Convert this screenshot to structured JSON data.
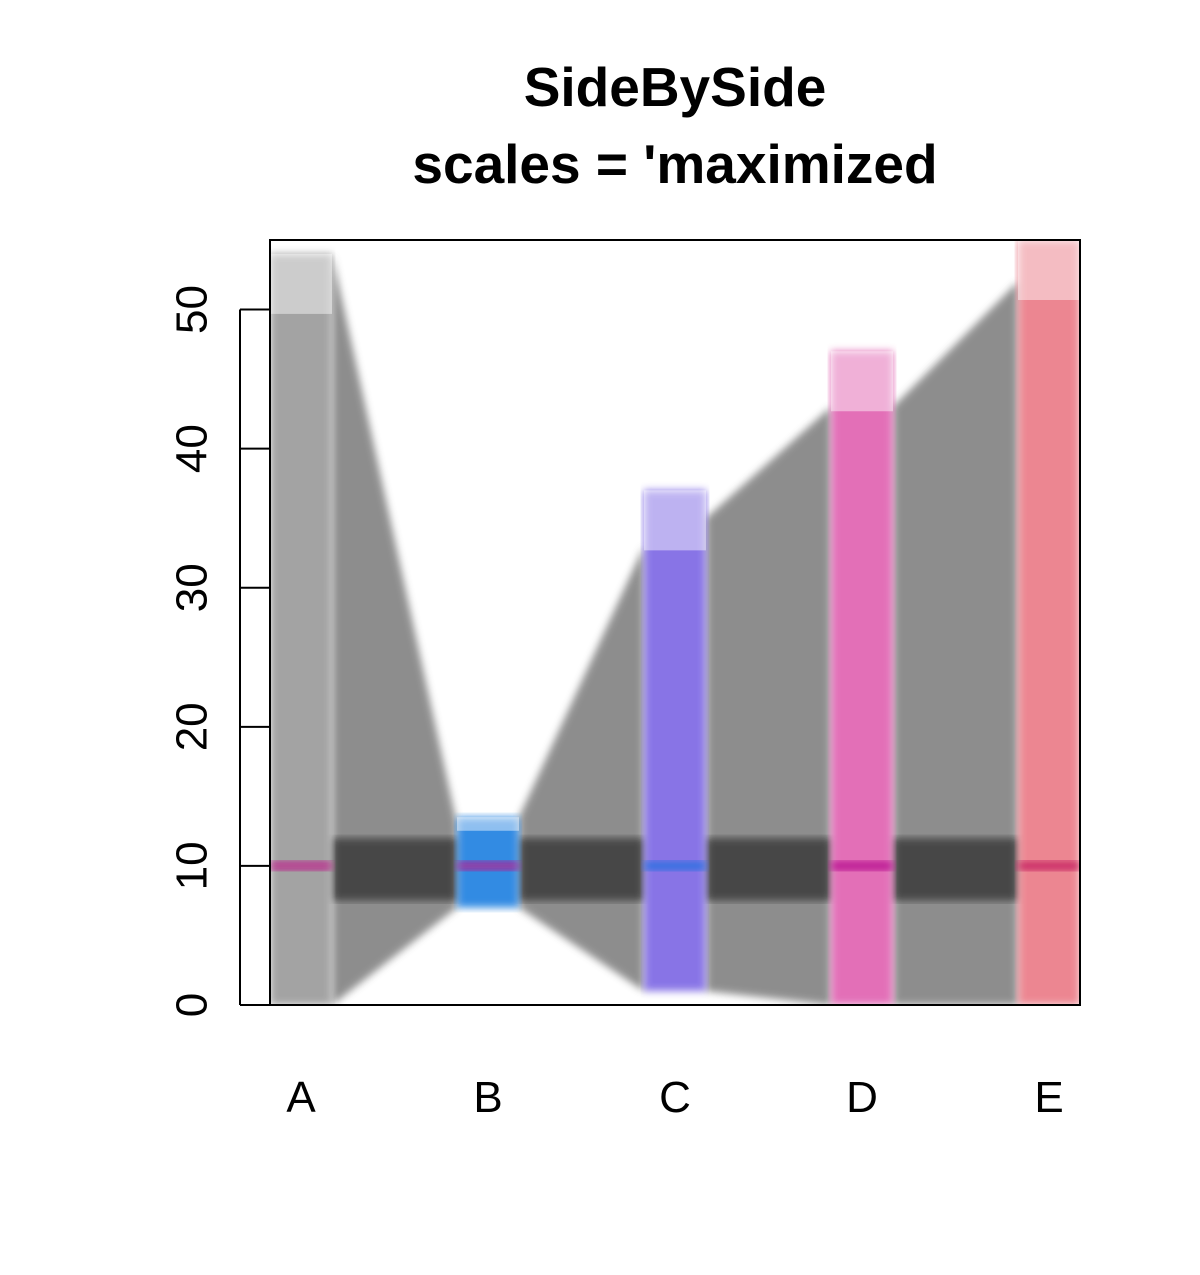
{
  "chart_data": {
    "type": "area",
    "title": "SideBySide",
    "subtitle": "scales = 'maximized",
    "categories": [
      "A",
      "B",
      "C",
      "D",
      "E"
    ],
    "ylim": [
      0,
      55
    ],
    "yticks": [
      0,
      10,
      20,
      30,
      40,
      50
    ],
    "grid": false,
    "legend": "none",
    "columns": [
      {
        "label": "A",
        "min": 0,
        "max": 54,
        "mode": 10,
        "color": "#9a9a9a",
        "mode_color": "#c0168a"
      },
      {
        "label": "B",
        "min": 7,
        "max": 13.5,
        "mode": 10,
        "color": "#1f7fe0",
        "mode_color": "#c0168a"
      },
      {
        "label": "C",
        "min": 1,
        "max": 37,
        "mode": 10,
        "color": "#7b66e4",
        "mode_color": "#1f6fe0"
      },
      {
        "label": "D",
        "min": 0,
        "max": 47,
        "mode": 10,
        "color": "#e060b0",
        "mode_color": "#b0008a"
      },
      {
        "label": "E",
        "min": 0,
        "max": 55,
        "mode": 10,
        "color": "#ea7a86",
        "mode_color": "#c0105a"
      }
    ],
    "connectors": [
      {
        "from": "A",
        "to": "B",
        "top_start": 54,
        "top_end": 13,
        "bottom_start": 0,
        "bottom_end": 7
      },
      {
        "from": "B",
        "to": "C",
        "top_start": 13.5,
        "top_end": 33,
        "bottom_start": 7,
        "bottom_end": 1
      },
      {
        "from": "C",
        "to": "D",
        "top_start": 35,
        "top_end": 43,
        "bottom_start": 1,
        "bottom_end": 0
      },
      {
        "from": "D",
        "to": "E",
        "top_start": 43,
        "top_end": 52,
        "bottom_start": 0,
        "bottom_end": 0
      }
    ]
  }
}
